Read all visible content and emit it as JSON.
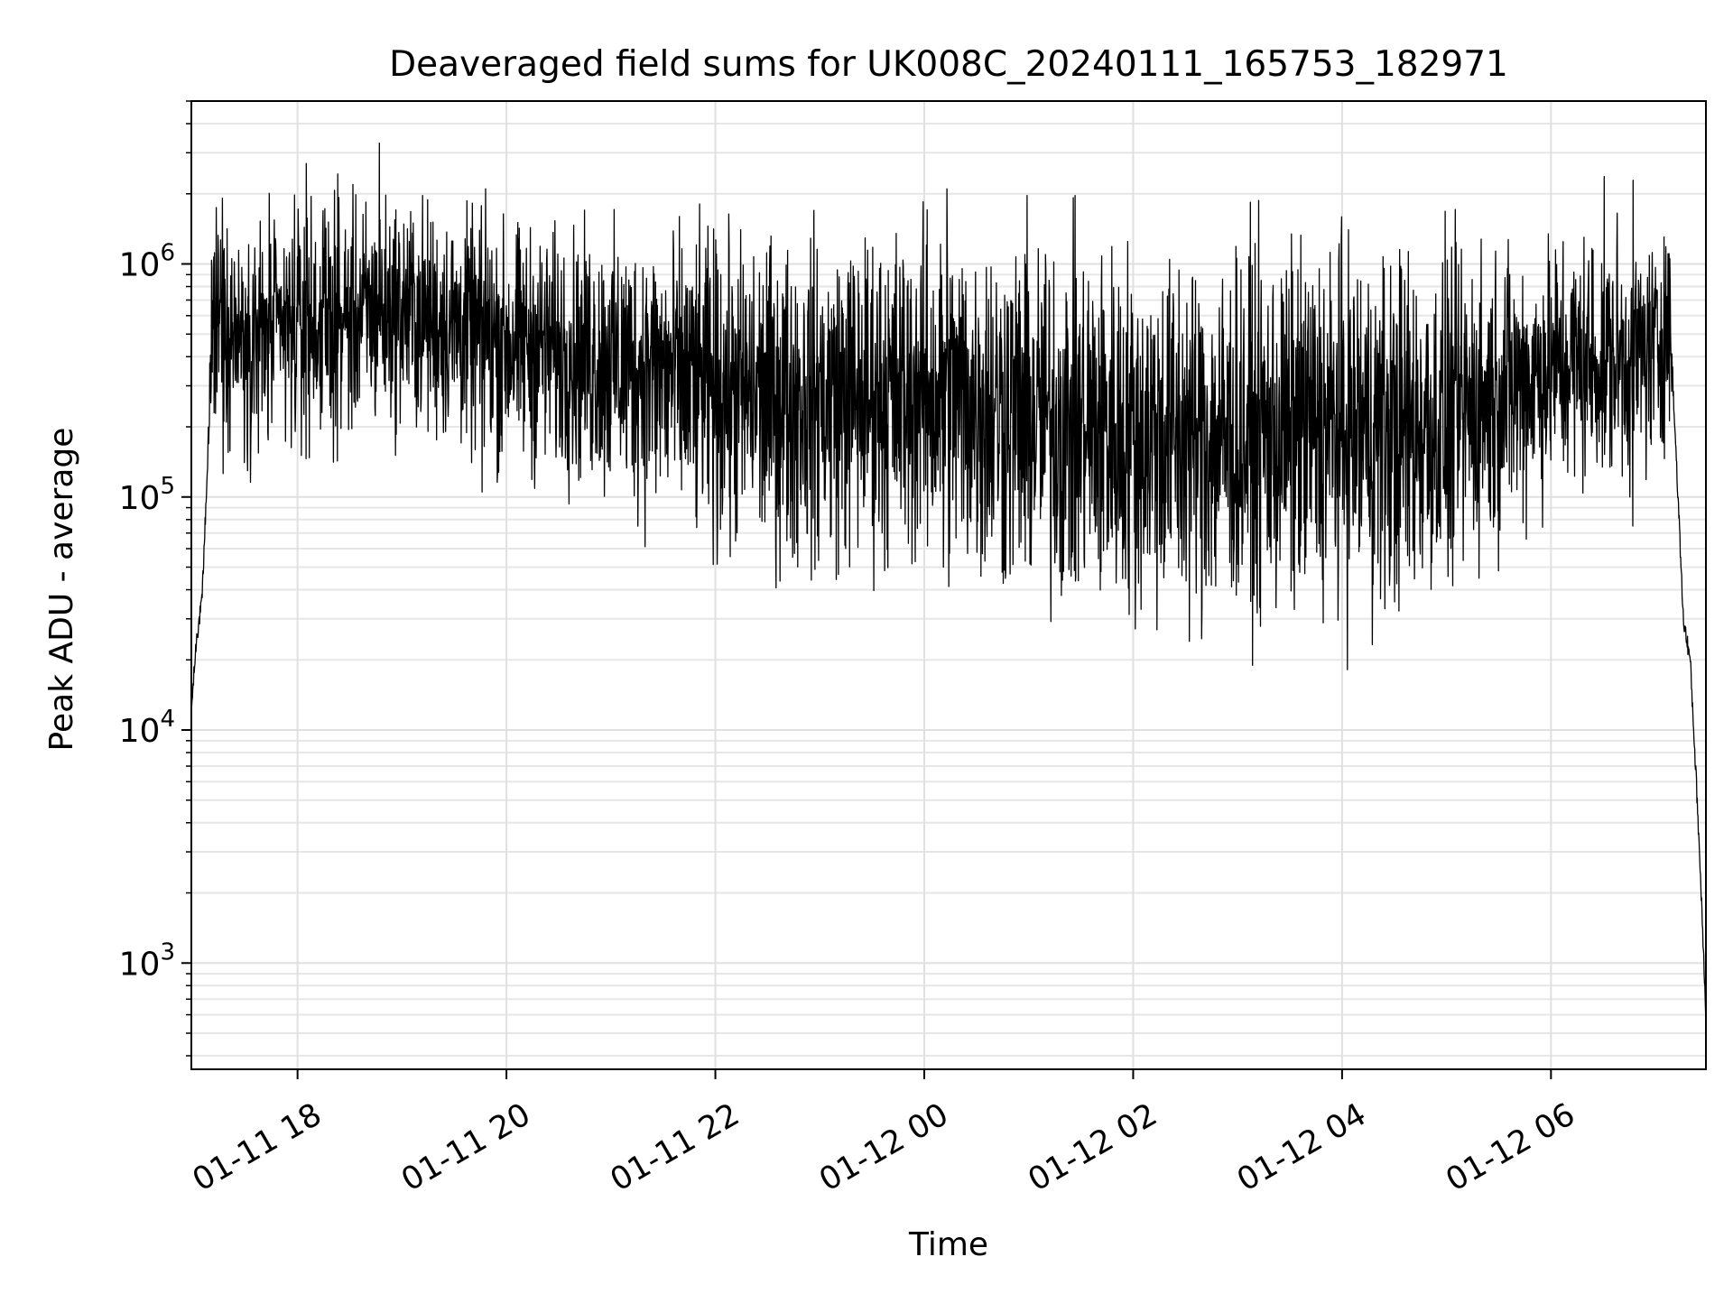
{
  "chart_data": {
    "type": "line",
    "title": "Deaveraged field sums for UK008C_20240111_165753_182971",
    "xlabel": "Time",
    "ylabel": "Peak ADU - average",
    "yscale": "log",
    "ylim": [
      350,
      5000000
    ],
    "xlim": [
      "2024-01-11 16:59",
      "2024-01-12 07:29"
    ],
    "grid": true,
    "x_ticks": [
      {
        "value": "2024-01-11 18:00",
        "label": "01-11 18"
      },
      {
        "value": "2024-01-11 20:00",
        "label": "01-11 20"
      },
      {
        "value": "2024-01-11 22:00",
        "label": "01-11 22"
      },
      {
        "value": "2024-01-12 00:00",
        "label": "01-12 00"
      },
      {
        "value": "2024-01-12 02:00",
        "label": "01-12 02"
      },
      {
        "value": "2024-01-12 04:00",
        "label": "01-12 04"
      },
      {
        "value": "2024-01-12 06:00",
        "label": "01-12 06"
      }
    ],
    "y_ticks": [
      {
        "value": 1000,
        "base": "10",
        "exp": "3"
      },
      {
        "value": 10000,
        "base": "10",
        "exp": "4"
      },
      {
        "value": 100000,
        "base": "10",
        "exp": "5"
      },
      {
        "value": 1000000,
        "base": "10",
        "exp": "6"
      }
    ],
    "series": [
      {
        "color": "#000000",
        "style": "noisy-trace",
        "envelope": {
          "x": [
            "2024-01-11 16:59",
            "2024-01-11 17:02",
            "2024-01-11 17:05",
            "2024-01-11 17:08",
            "2024-01-11 17:11",
            "2024-01-11 17:14",
            "2024-01-11 17:20",
            "2024-01-11 17:40",
            "2024-01-11 18:00",
            "2024-01-11 18:30",
            "2024-01-11 19:00",
            "2024-01-11 19:30",
            "2024-01-11 20:00",
            "2024-01-11 20:30",
            "2024-01-11 21:00",
            "2024-01-11 21:30",
            "2024-01-11 22:00",
            "2024-01-11 22:30",
            "2024-01-11 23:00",
            "2024-01-11 23:30",
            "2024-01-12 00:00",
            "2024-01-12 00:30",
            "2024-01-12 01:00",
            "2024-01-12 01:30",
            "2024-01-12 02:00",
            "2024-01-12 02:30",
            "2024-01-12 03:00",
            "2024-01-12 03:30",
            "2024-01-12 04:00",
            "2024-01-12 04:30",
            "2024-01-12 05:00",
            "2024-01-12 05:30",
            "2024-01-12 06:00",
            "2024-01-12 06:30",
            "2024-01-12 07:00",
            "2024-01-12 07:08",
            "2024-01-12 07:12",
            "2024-01-12 07:16",
            "2024-01-12 07:20",
            "2024-01-12 07:24",
            "2024-01-12 07:27",
            "2024-01-12 07:29"
          ],
          "median": [
            12000,
            25000,
            35000,
            120000,
            500000,
            600000,
            550000,
            500000,
            550000,
            600000,
            650000,
            550000,
            480000,
            450000,
            400000,
            350000,
            300000,
            280000,
            270000,
            280000,
            300000,
            260000,
            220000,
            200000,
            190000,
            180000,
            180000,
            190000,
            200000,
            190000,
            210000,
            280000,
            350000,
            380000,
            420000,
            600000,
            150000,
            30000,
            20000,
            5000,
            1500,
            600
          ],
          "spread_low": [
            0,
            0,
            0,
            0,
            0.45,
            0.5,
            0.5,
            0.5,
            0.5,
            0.5,
            0.5,
            0.5,
            0.55,
            0.55,
            0.6,
            0.65,
            0.7,
            0.7,
            0.7,
            0.7,
            0.75,
            0.75,
            0.75,
            0.75,
            0.75,
            0.75,
            0.75,
            0.75,
            0.75,
            0.75,
            0.7,
            0.6,
            0.5,
            0.5,
            0.5,
            0.4,
            0,
            0,
            0,
            0,
            0,
            0
          ],
          "spread_high": [
            0,
            0,
            0,
            0,
            0.45,
            0.45,
            0.45,
            0.45,
            0.45,
            0.45,
            0.45,
            0.45,
            0.45,
            0.45,
            0.5,
            0.55,
            0.6,
            0.6,
            0.65,
            0.65,
            0.65,
            0.7,
            0.75,
            0.75,
            0.75,
            0.75,
            0.75,
            0.75,
            0.75,
            0.75,
            0.7,
            0.6,
            0.55,
            0.55,
            0.5,
            0.4,
            0,
            0,
            0,
            0,
            0,
            0
          ]
        },
        "spikes": [
          {
            "x": "2024-01-11 18:05",
            "y": 2700000
          },
          {
            "x": "2024-01-11 18:47",
            "y": 3300000
          },
          {
            "x": "2024-01-11 19:48",
            "y": 2100000
          },
          {
            "x": "2024-01-12 00:13",
            "y": 2100000
          },
          {
            "x": "2024-01-11 19:46",
            "y": 105000
          },
          {
            "x": "2024-01-12 00:11",
            "y": 50000
          },
          {
            "x": "2024-01-12 01:27",
            "y": 45000
          },
          {
            "x": "2024-01-12 02:28",
            "y": 46000
          },
          {
            "x": "2024-01-12 06:47",
            "y": 75000
          }
        ]
      }
    ]
  }
}
